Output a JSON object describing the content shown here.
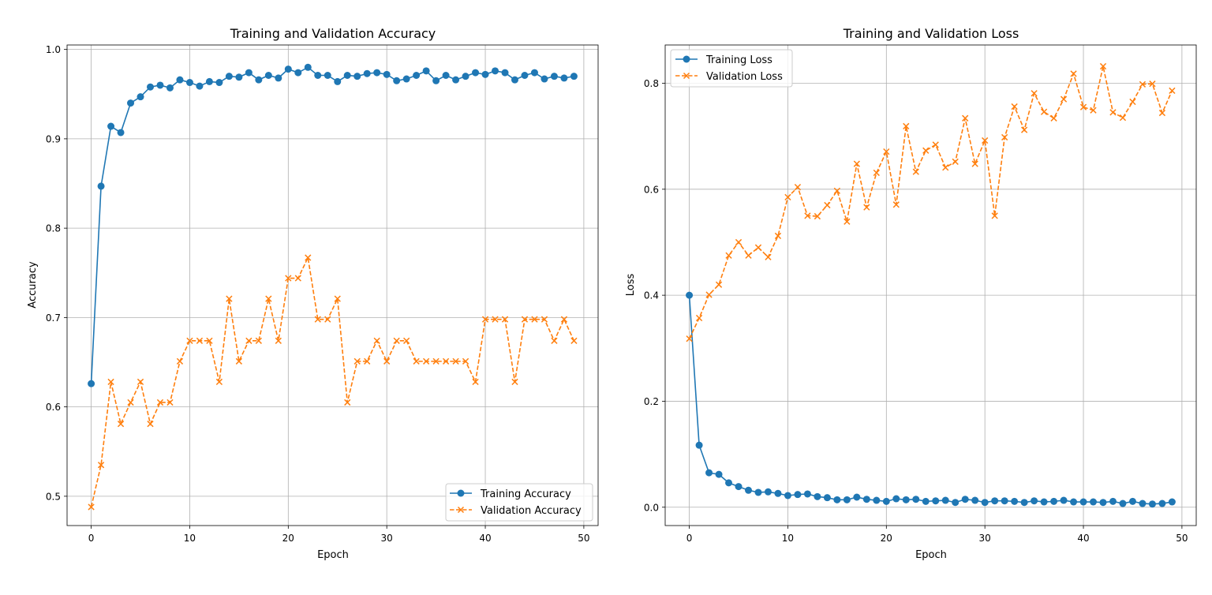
{
  "colors": {
    "train": "#1f77b4",
    "val": "#ff7f0e",
    "grid": "#b0b0b0"
  },
  "chart_data": [
    {
      "type": "line",
      "title": "Training and Validation Accuracy",
      "xlabel": "Epoch",
      "ylabel": "Accuracy",
      "xlim": [
        -2.45,
        51.45
      ],
      "ylim": [
        0.4672,
        1.005
      ],
      "xticks": [
        0,
        10,
        20,
        30,
        40,
        50
      ],
      "xtick_labels": [
        "0",
        "10",
        "20",
        "30",
        "40",
        "50"
      ],
      "yticks": [
        0.5,
        0.6,
        0.7,
        0.8,
        0.9,
        1.0
      ],
      "ytick_labels": [
        "0.5",
        "0.6",
        "0.7",
        "0.8",
        "0.9",
        "1.0"
      ],
      "grid": true,
      "legend_position": "lower right",
      "x": [
        0,
        1,
        2,
        3,
        4,
        5,
        6,
        7,
        8,
        9,
        10,
        11,
        12,
        13,
        14,
        15,
        16,
        17,
        18,
        19,
        20,
        21,
        22,
        23,
        24,
        25,
        26,
        27,
        28,
        29,
        30,
        31,
        32,
        33,
        34,
        35,
        36,
        37,
        38,
        39,
        40,
        41,
        42,
        43,
        44,
        45,
        46,
        47,
        48,
        49
      ],
      "series": [
        {
          "name": "Training Accuracy",
          "marker": "circle",
          "style": "solid",
          "values": [
            0.626,
            0.847,
            0.914,
            0.907,
            0.94,
            0.947,
            0.958,
            0.96,
            0.957,
            0.966,
            0.963,
            0.959,
            0.964,
            0.963,
            0.97,
            0.969,
            0.974,
            0.966,
            0.971,
            0.968,
            0.978,
            0.974,
            0.98,
            0.971,
            0.971,
            0.964,
            0.971,
            0.97,
            0.973,
            0.974,
            0.972,
            0.965,
            0.967,
            0.971,
            0.976,
            0.965,
            0.971,
            0.966,
            0.97,
            0.974,
            0.972,
            0.976,
            0.974,
            0.966,
            0.971,
            0.974,
            0.967,
            0.97,
            0.968,
            0.97
          ]
        },
        {
          "name": "Validation Accuracy",
          "marker": "x",
          "style": "dashed",
          "values": [
            0.488,
            0.535,
            0.628,
            0.581,
            0.605,
            0.628,
            0.581,
            0.605,
            0.605,
            0.651,
            0.674,
            0.674,
            0.674,
            0.628,
            0.721,
            0.651,
            0.674,
            0.674,
            0.721,
            0.674,
            0.744,
            0.744,
            0.767,
            0.698,
            0.698,
            0.721,
            0.605,
            0.651,
            0.651,
            0.674,
            0.651,
            0.674,
            0.674,
            0.651,
            0.651,
            0.651,
            0.651,
            0.651,
            0.651,
            0.628,
            0.698,
            0.698,
            0.698,
            0.628,
            0.698,
            0.698,
            0.698,
            0.674,
            0.698,
            0.674
          ]
        }
      ]
    },
    {
      "type": "line",
      "title": "Training and Validation Loss",
      "xlabel": "Epoch",
      "ylabel": "Loss",
      "xlim": [
        -2.45,
        51.45
      ],
      "ylim": [
        -0.0346,
        0.8722
      ],
      "xticks": [
        0,
        10,
        20,
        30,
        40,
        50
      ],
      "xtick_labels": [
        "0",
        "10",
        "20",
        "30",
        "40",
        "50"
      ],
      "yticks": [
        0.0,
        0.2,
        0.4,
        0.6,
        0.8
      ],
      "ytick_labels": [
        "0.0",
        "0.2",
        "0.4",
        "0.6",
        "0.8"
      ],
      "grid": true,
      "legend_position": "upper left",
      "x": [
        0,
        1,
        2,
        3,
        4,
        5,
        6,
        7,
        8,
        9,
        10,
        11,
        12,
        13,
        14,
        15,
        16,
        17,
        18,
        19,
        20,
        21,
        22,
        23,
        24,
        25,
        26,
        27,
        28,
        29,
        30,
        31,
        32,
        33,
        34,
        35,
        36,
        37,
        38,
        39,
        40,
        41,
        42,
        43,
        44,
        45,
        46,
        47,
        48,
        49
      ],
      "series": [
        {
          "name": "Training Loss",
          "marker": "circle",
          "style": "solid",
          "values": [
            0.4,
            0.117,
            0.065,
            0.062,
            0.046,
            0.039,
            0.032,
            0.028,
            0.029,
            0.026,
            0.022,
            0.024,
            0.025,
            0.02,
            0.018,
            0.014,
            0.014,
            0.019,
            0.015,
            0.013,
            0.011,
            0.016,
            0.014,
            0.015,
            0.011,
            0.012,
            0.013,
            0.009,
            0.015,
            0.013,
            0.009,
            0.012,
            0.012,
            0.011,
            0.009,
            0.012,
            0.01,
            0.011,
            0.013,
            0.01,
            0.01,
            0.01,
            0.009,
            0.011,
            0.007,
            0.011,
            0.007,
            0.006,
            0.007,
            0.01
          ]
        },
        {
          "name": "Validation Loss",
          "marker": "x",
          "style": "dashed",
          "values": [
            0.318,
            0.357,
            0.401,
            0.42,
            0.475,
            0.5,
            0.475,
            0.49,
            0.472,
            0.512,
            0.585,
            0.604,
            0.55,
            0.549,
            0.57,
            0.597,
            0.539,
            0.648,
            0.566,
            0.631,
            0.671,
            0.571,
            0.719,
            0.633,
            0.673,
            0.684,
            0.641,
            0.652,
            0.734,
            0.648,
            0.692,
            0.55,
            0.698,
            0.756,
            0.712,
            0.781,
            0.746,
            0.734,
            0.77,
            0.818,
            0.755,
            0.749,
            0.832,
            0.745,
            0.735,
            0.765,
            0.798,
            0.799,
            0.744,
            0.786
          ]
        }
      ]
    }
  ]
}
